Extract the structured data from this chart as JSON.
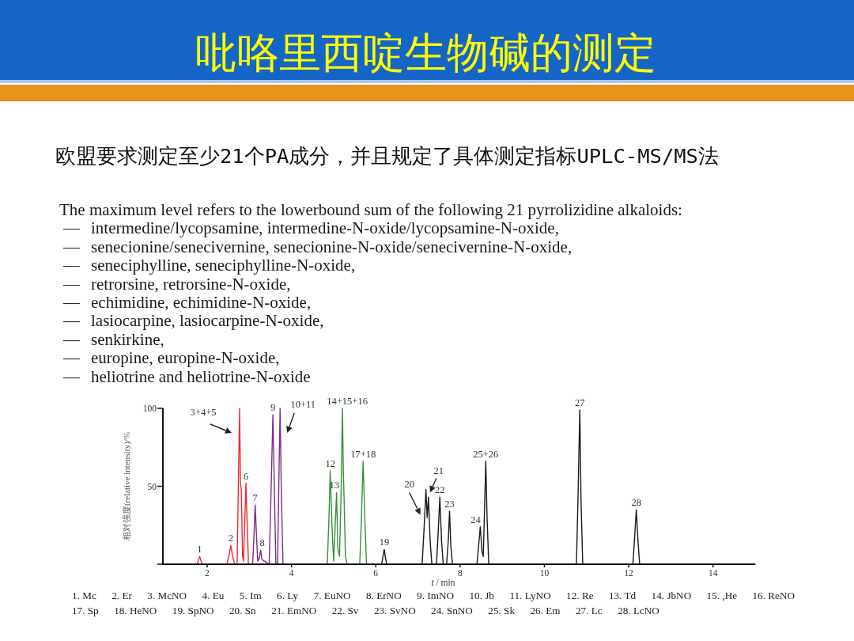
{
  "chart_data": {
    "type": "line",
    "title": "吡咯里西啶生物碱的测定",
    "subtitle": "欧盟要求测定至少21个PA成分，并且规定了具体测定指标UPLC-MS/MS法",
    "xlabel": "*t* / min",
    "ylabel": "相对强度(relative intensity)/%",
    "xlim": [
      0.95,
      15
    ],
    "xticks": [
      2,
      4,
      6,
      8,
      10,
      12,
      14
    ],
    "ylim": [
      0,
      100
    ],
    "yticks": [
      {
        "value": 0,
        "label": null
      },
      50,
      100
    ],
    "series": [
      {
        "color": "#ec2a32",
        "x": [
          0.95,
          1.76,
          1.82,
          1.88,
          2.47,
          2.52,
          2.56,
          2.6,
          2.65,
          2.71,
          2.74,
          2.77,
          2.79,
          2.81,
          2.84,
          2.86,
          2.89,
          2.92,
          2.95,
          2.98,
          3.05
        ],
        "values": [
          0,
          0,
          5,
          0,
          0,
          6,
          12,
          6,
          0,
          0,
          50,
          100,
          52,
          48,
          5,
          2,
          25,
          52,
          25,
          0,
          0
        ]
      },
      {
        "color": "#7d2b8b",
        "x": [
          3.0,
          3.08,
          3.11,
          3.14,
          3.17,
          3.2,
          3.24,
          3.27,
          3.3,
          3.47,
          3.51,
          3.56,
          3.6,
          3.63,
          3.67,
          3.7,
          3.73,
          3.76,
          3.8,
          4.1
        ],
        "values": [
          0,
          0,
          18,
          38,
          18,
          2,
          4,
          9,
          3,
          0,
          40,
          96,
          40,
          0,
          0,
          50,
          100,
          45,
          0,
          0
        ]
      },
      {
        "color": "#3b8f40",
        "x": [
          4.0,
          4.85,
          4.89,
          4.92,
          4.96,
          5.0,
          5.03,
          5.07,
          5.1,
          5.14,
          5.18,
          5.21,
          5.23,
          5.25,
          5.28,
          5.32,
          5.62,
          5.66,
          5.7,
          5.74,
          5.78,
          6.0
        ],
        "values": [
          0,
          0,
          30,
          60,
          25,
          2,
          20,
          46,
          10,
          5,
          50,
          100,
          60,
          41,
          5,
          0,
          0,
          30,
          66,
          30,
          0,
          0
        ]
      },
      {
        "color": "#1a1a1a",
        "x": [
          6.0,
          6.14,
          6.17,
          6.2,
          6.23,
          6.26,
          7.1,
          7.15,
          7.19,
          7.22,
          7.25,
          7.29,
          7.33,
          7.44,
          7.48,
          7.52,
          7.56,
          7.6,
          7.68,
          7.72,
          7.75,
          7.78,
          7.82,
          8.4,
          8.44,
          8.48,
          8.52,
          8.55,
          8.58,
          8.61,
          8.64,
          8.68,
          10.76,
          10.8,
          10.84,
          10.87,
          10.91,
          12.1,
          12.14,
          12.18,
          12.22,
          12.26,
          15
        ],
        "values": [
          0,
          0,
          5,
          9.5,
          4,
          0,
          0,
          25,
          48,
          30,
          43,
          15,
          0,
          0,
          20,
          43,
          15,
          0,
          0,
          15,
          34,
          12,
          0,
          0,
          12,
          24,
          8,
          5,
          35,
          66,
          30,
          0,
          0,
          45,
          99,
          40,
          0,
          0,
          17,
          35,
          15,
          0,
          0
        ]
      }
    ],
    "annotations": [
      "The maximum level refers to the lowerbound sum of the following 21 pyrrolizidine alkaloids:",
      "— intermedine/lycopsamine, intermedine-N-oxide/lycopsamine-N-oxide,",
      "— senecionine/senecivernine, senecionine-N-oxide/senecivernine-N-oxide,",
      "— seneciphylline, seneciphylline-N-oxide,",
      "— retrorsine, retrorsine-N-oxide,",
      "— echimidine, echimidine-N-oxide,",
      "— lasiocarpine, lasiocarpine-N-oxide,",
      "— senkirkine,",
      "— europine, europine-N-oxide,",
      "— heliotrine and heliotrine-N-oxide",
      {
        "text": "1",
        "x": 1.82,
        "y": 5
      },
      {
        "text": "2",
        "x": 2.56,
        "y": 12
      },
      {
        "text": "3+4+5",
        "x": 2.77,
        "y": 100
      },
      {
        "text": "6",
        "x": 2.92,
        "y": 52
      },
      {
        "text": "7",
        "x": 3.14,
        "y": 38
      },
      {
        "text": "8",
        "x": 3.27,
        "y": 9
      },
      {
        "text": "9",
        "x": 3.56,
        "y": 96
      },
      {
        "text": "10+11",
        "x": 3.73,
        "y": 100
      },
      {
        "text": "12",
        "x": 4.92,
        "y": 60
      },
      {
        "text": "13",
        "x": 5.07,
        "y": 46
      },
      {
        "text": "14+15+16",
        "x": 5.21,
        "y": 100
      },
      {
        "text": "17+18",
        "x": 5.7,
        "y": 66
      },
      {
        "text": "19",
        "x": 6.2,
        "y": 9.5
      },
      {
        "text": "20",
        "x": 7.19,
        "y": 48
      },
      {
        "text": "21",
        "x": 7.25,
        "y": 43
      },
      {
        "text": "22",
        "x": 7.52,
        "y": 43
      },
      {
        "text": "23",
        "x": 7.75,
        "y": 34
      },
      {
        "text": "24",
        "x": 8.48,
        "y": 24
      },
      {
        "text": "25+26",
        "x": 8.61,
        "y": 66
      },
      {
        "text": "27",
        "x": 10.84,
        "y": 99
      },
      {
        "text": "28",
        "x": 12.18,
        "y": 35
      },
      "1. Mc",
      "2. Er",
      "3. McNO",
      "4. Eu",
      "5. Im",
      "6. Ly",
      "7. EuNO",
      "8. ErNO",
      "9. ImNO",
      "10. Jb",
      "11. LyNO",
      "12. Re",
      "13. Td",
      "14. JbNO",
      "15. ,He",
      "16. ReNO",
      "17. Sp",
      "18. HeNO",
      "19. SpNO",
      "20. Sn",
      "21. EmNO",
      "22. Sv",
      "23. SvNO",
      "24. SnNO",
      "25. Sk",
      "26. Em",
      "27. Lc",
      "28. LcNO"
    ]
  }
}
